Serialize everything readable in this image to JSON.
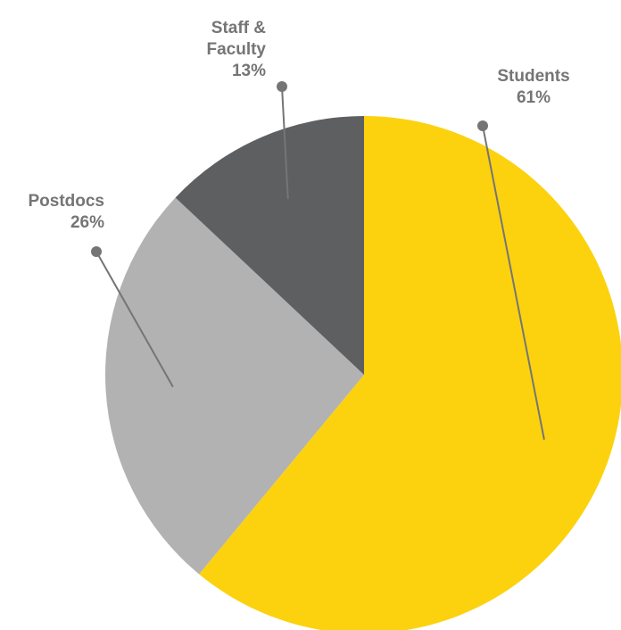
{
  "chart_data": {
    "type": "pie",
    "start_angle_deg": 0,
    "direction": "clockwise",
    "slices": [
      {
        "name": "Students",
        "value": 61,
        "label_lines": [
          "Students",
          "61%"
        ],
        "color": "#FCD20F"
      },
      {
        "name": "Postdocs",
        "value": 26,
        "label_lines": [
          "Postdocs",
          "26%"
        ],
        "color": "#B2B2B2"
      },
      {
        "name": "Staff & Faculty",
        "value": 13,
        "label_lines": [
          "Staff &",
          "Faculty",
          "13%"
        ],
        "color": "#5E5F61"
      }
    ],
    "label_color": "#757575",
    "leader_color": "#757575"
  }
}
